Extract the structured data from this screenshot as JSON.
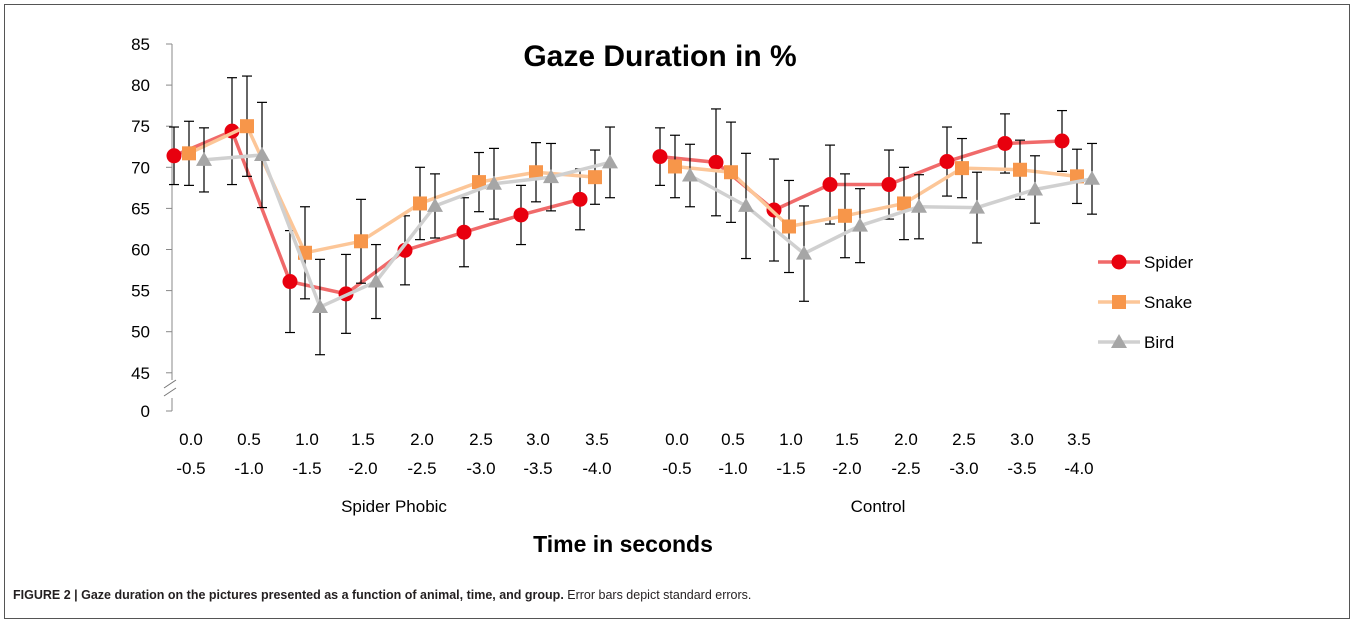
{
  "caption": {
    "label": "FIGURE 2 | Gaze duration on the pictures presented as a function of animal, time, and group.",
    "note": " Error bars depict standard errors."
  },
  "chart_data": {
    "type": "line",
    "title": "Gaze Duration in %",
    "xlabel": "Time in seconds",
    "ylabel": "",
    "ylim": [
      45,
      85
    ],
    "axis_break": true,
    "y_ticks": [
      "0",
      "45",
      "50",
      "55",
      "60",
      "65",
      "70",
      "75",
      "80",
      "85"
    ],
    "groups": [
      {
        "name": "Spider Phobic",
        "categories": [
          [
            "0.0",
            "-0.5"
          ],
          [
            "0.5",
            "-1.0"
          ],
          [
            "1.0",
            "-1.5"
          ],
          [
            "1.5",
            "-2.0"
          ],
          [
            "2.0",
            "-2.5"
          ],
          [
            "2.5",
            "-3.0"
          ],
          [
            "3.0",
            "-3.5"
          ],
          [
            "3.5",
            "-4.0"
          ]
        ]
      },
      {
        "name": "Control",
        "categories": [
          [
            "0.0",
            "-0.5"
          ],
          [
            "0.5",
            "-1.0"
          ],
          [
            "1.0",
            "-1.5"
          ],
          [
            "1.5",
            "-2.0"
          ],
          [
            "2.0",
            "-2.5"
          ],
          [
            "2.5",
            "-3.0"
          ],
          [
            "3.0",
            "-3.5"
          ],
          [
            "3.5",
            "-4.0"
          ]
        ]
      }
    ],
    "series": [
      {
        "name": "Spider",
        "color": "#f06a6a",
        "marker_color": "#e8000e",
        "marker": "circle",
        "values": [
          [
            71.4,
            74.4,
            56.1,
            54.6,
            59.9,
            62.1,
            64.2,
            66.1
          ],
          [
            71.3,
            70.6,
            64.8,
            67.9,
            67.9,
            70.7,
            72.9,
            73.2
          ]
        ],
        "errors": [
          [
            3.5,
            6.5,
            6.2,
            4.8,
            4.2,
            4.2,
            3.6,
            3.7
          ],
          [
            3.5,
            6.5,
            6.2,
            4.8,
            4.2,
            4.2,
            3.6,
            3.7
          ]
        ]
      },
      {
        "name": "Snake",
        "color": "#fcc698",
        "marker_color": "#f7964a",
        "marker": "square",
        "values": [
          [
            71.7,
            75.0,
            59.6,
            61.0,
            65.6,
            68.2,
            69.4,
            68.8
          ],
          [
            70.1,
            69.4,
            62.8,
            64.1,
            65.6,
            69.9,
            69.7,
            68.9
          ]
        ],
        "errors": [
          [
            3.9,
            6.1,
            5.6,
            5.1,
            4.4,
            3.6,
            3.6,
            3.3
          ],
          [
            3.8,
            6.1,
            5.6,
            5.1,
            4.4,
            3.6,
            3.6,
            3.3
          ]
        ]
      },
      {
        "name": "Bird",
        "color": "#d0d0d0",
        "marker_color": "#a6a6a6",
        "marker": "triangle",
        "values": [
          [
            70.9,
            71.5,
            53.0,
            56.1,
            65.3,
            68.0,
            68.8,
            70.6
          ],
          [
            69.0,
            65.3,
            59.5,
            62.9,
            65.2,
            65.1,
            67.3,
            68.6
          ]
        ],
        "errors": [
          [
            3.9,
            6.4,
            5.8,
            4.5,
            3.9,
            4.3,
            4.1,
            4.3
          ],
          [
            3.8,
            6.4,
            5.8,
            4.5,
            3.9,
            4.3,
            4.1,
            4.3
          ]
        ]
      }
    ],
    "legend_position": "right",
    "grid": false
  }
}
